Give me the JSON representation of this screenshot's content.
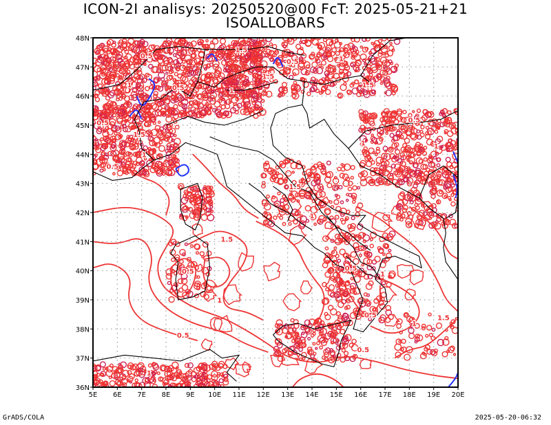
{
  "header": {
    "title_line1": "ICON-2I analisys: 20250520@00 FcT: 2025-05-21+21",
    "title_line2": "ISOALLOBARS"
  },
  "map": {
    "x_ticks": [
      "5E",
      "6E",
      "7E",
      "8E",
      "9E",
      "10E",
      "11E",
      "12E",
      "13E",
      "14E",
      "15E",
      "16E",
      "17E",
      "18E",
      "19E",
      "20E"
    ],
    "y_ticks": [
      "48N",
      "47N",
      "46N",
      "45N",
      "44N",
      "43N",
      "42N",
      "41N",
      "40N",
      "39N",
      "38N",
      "37N",
      "36N"
    ],
    "lon_range": [
      5,
      20
    ],
    "lat_range": [
      36,
      48
    ],
    "grid": true,
    "colors": {
      "positive_contour": "#ee3333",
      "strong_contour": "#cc2255",
      "negative_contour": "#2233ff",
      "coastline": "#000000",
      "grid": "#999999"
    },
    "contour_labels": [
      "0.5",
      "1",
      "1.5",
      "0.5",
      "1",
      "1.5",
      "0.5",
      "1",
      "1.5",
      "0.5",
      "1",
      "1.5",
      "0.5",
      "1",
      "0.5",
      "1.5",
      "1",
      "0.5",
      "1",
      "0.5",
      "1",
      "1.5",
      "1",
      "0.5",
      "1",
      "0.5",
      "1.5",
      "0.5",
      "1"
    ]
  },
  "footer": {
    "left": "GrADS/COLA",
    "right": "2025-05-20-06:32"
  }
}
